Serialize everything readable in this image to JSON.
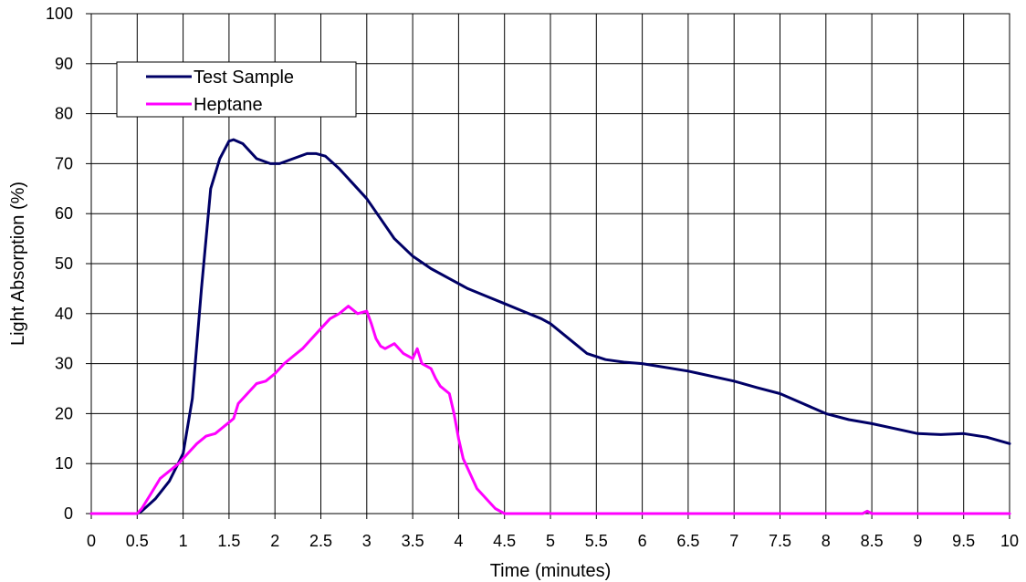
{
  "chart_data": {
    "type": "line",
    "title": "",
    "xlabel": "Time (minutes)",
    "ylabel": "Light Absorption (%)",
    "xlim": [
      0,
      10
    ],
    "ylim": [
      0,
      100
    ],
    "x_ticks": [
      "0",
      "0.5",
      "1",
      "1.5",
      "2",
      "2.5",
      "3",
      "3.5",
      "4",
      "4.5",
      "5",
      "5.5",
      "6",
      "6.5",
      "7",
      "7.5",
      "8",
      "8.5",
      "9",
      "9.5",
      "10"
    ],
    "y_ticks": [
      "0",
      "10",
      "20",
      "30",
      "40",
      "50",
      "60",
      "70",
      "80",
      "90",
      "100"
    ],
    "grid": true,
    "legend_position": "top-left",
    "series": [
      {
        "name": "Test Sample",
        "color": "#000066",
        "x": [
          0,
          0.5,
          0.55,
          0.7,
          0.85,
          1.0,
          1.1,
          1.2,
          1.3,
          1.4,
          1.5,
          1.55,
          1.65,
          1.8,
          1.95,
          2.05,
          2.2,
          2.35,
          2.45,
          2.55,
          2.7,
          2.85,
          3.0,
          3.15,
          3.3,
          3.5,
          3.7,
          3.9,
          4.1,
          4.3,
          4.5,
          4.7,
          4.9,
          5.0,
          5.2,
          5.4,
          5.6,
          5.8,
          6.0,
          6.5,
          7.0,
          7.25,
          7.5,
          7.75,
          8.0,
          8.25,
          8.5,
          8.75,
          9.0,
          9.25,
          9.5,
          9.75,
          10.0
        ],
        "y": [
          0,
          0,
          0.5,
          3,
          6.5,
          12,
          23,
          45,
          65,
          71,
          74.5,
          74.8,
          74,
          71,
          70,
          70,
          71,
          72,
          72,
          71.5,
          69,
          66,
          63,
          59,
          55,
          51.5,
          49,
          47,
          45,
          43.5,
          42,
          40.5,
          39,
          38,
          35,
          32,
          30.8,
          30.3,
          30,
          28.5,
          26.5,
          25.2,
          24,
          22,
          20,
          18.8,
          18,
          17,
          16,
          15.8,
          16,
          15.3,
          14
        ]
      },
      {
        "name": "Heptane",
        "color": "#ff00ff",
        "x": [
          0,
          0.5,
          0.55,
          0.65,
          0.75,
          0.85,
          0.95,
          1.05,
          1.15,
          1.25,
          1.35,
          1.45,
          1.55,
          1.6,
          1.7,
          1.8,
          1.9,
          2.0,
          2.1,
          2.2,
          2.3,
          2.4,
          2.5,
          2.6,
          2.7,
          2.8,
          2.9,
          3.0,
          3.05,
          3.1,
          3.15,
          3.2,
          3.3,
          3.4,
          3.5,
          3.55,
          3.6,
          3.7,
          3.75,
          3.8,
          3.9,
          3.95,
          4.0,
          4.05,
          4.1,
          4.2,
          4.3,
          4.4,
          4.5,
          5.0,
          6.0,
          7.0,
          8.0,
          8.4,
          8.45,
          8.5,
          9.0,
          10.0
        ],
        "y": [
          0,
          0,
          1,
          4,
          7,
          8.5,
          10,
          12,
          14,
          15.5,
          16,
          17.5,
          19,
          22,
          24,
          26,
          26.5,
          28,
          30,
          31.5,
          33,
          35,
          37,
          39,
          40,
          41.5,
          40,
          40.5,
          38,
          35,
          33.5,
          33,
          34,
          32,
          31,
          33,
          30,
          29,
          27,
          25.5,
          24,
          20,
          15,
          11,
          9,
          5,
          3,
          1,
          0,
          0,
          0,
          0,
          0,
          0,
          0.5,
          0,
          0,
          0
        ]
      }
    ]
  }
}
